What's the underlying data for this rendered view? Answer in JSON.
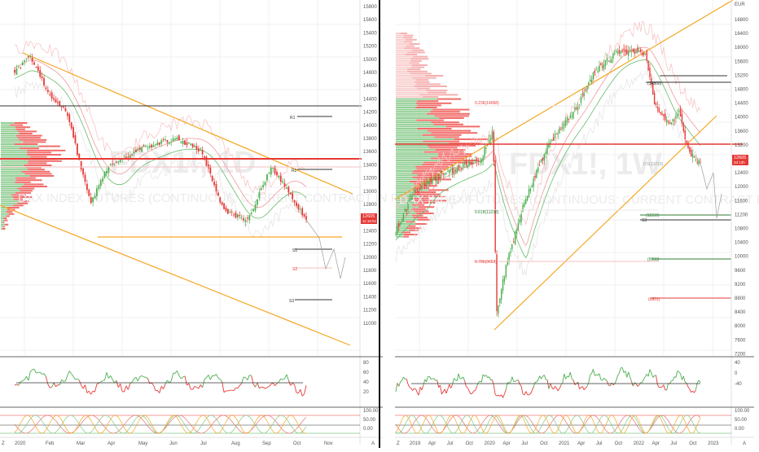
{
  "colors": {
    "up": "#4caf50",
    "down": "#e53935",
    "orange": "#f5a623",
    "black": "#333333",
    "green_lvl": "#2e7d32",
    "red_lvl": "#e53935",
    "vp_green": "#81c784",
    "vp_red": "#ef5350"
  },
  "left": {
    "watermark": "FDX1!, 1D",
    "subtitle": "DAX INDEX FUTURES (CONTINUOUS: CURRENT CONTRACT IN FRONT)",
    "price_label": "12605",
    "timer_label": "11:16:51",
    "levels": [
      "R1",
      "R2",
      "S1",
      "S2",
      "S3"
    ],
    "x_ticks": [
      "2020",
      "Feb",
      "Mar",
      "Apr",
      "May",
      "Jun",
      "Jul",
      "Aug",
      "Sep",
      "Oct",
      "Nov"
    ],
    "y_ticks": [
      "15800",
      "15600",
      "15400",
      "15200",
      "15000",
      "14800",
      "14600",
      "14400",
      "14200",
      "14000",
      "13800",
      "13600",
      "13400",
      "13200",
      "13000",
      "12800",
      "12600",
      "12400",
      "12200",
      "12000",
      "11800",
      "11600",
      "11400",
      "11200",
      "11000"
    ],
    "rsi_ticks": [
      "80",
      "60",
      "40",
      "20"
    ],
    "stoch_ticks": [
      "100.00",
      "50.00",
      "0.00"
    ],
    "scale_mode": "A",
    "corner_icon": "Z"
  },
  "right": {
    "watermark": "FDX1!, 1W",
    "subtitle": "DAX INDEX FUTURES (CONTINUOUS: CURRENT CONTRACT IN FRONT)",
    "currency": "EUR",
    "price_label": "12605",
    "timer_label": "2d 13h",
    "y_ticks": [
      "16800",
      "16400",
      "16000",
      "15600",
      "15200",
      "14800",
      "14400",
      "14000",
      "13600",
      "13200",
      "12800",
      "12400",
      "12000",
      "11600",
      "11200",
      "10800",
      "10400",
      "10000",
      "9600",
      "9200",
      "8800",
      "8400",
      "8000",
      "7600",
      "7200"
    ],
    "x_ticks": [
      "2019",
      "Apr",
      "Jul",
      "Oct",
      "2020",
      "Apr",
      "Jul",
      "Oct",
      "2021",
      "Apr",
      "Jul",
      "Oct",
      "2022",
      "Apr",
      "Jul",
      "Oct",
      "2023"
    ],
    "fib_labels": [
      "0.236(14068)",
      "0.5(13233)",
      "0.618(11238)",
      "0.786(9653)"
    ],
    "level_labels": [
      "(14800)",
      "(11150)",
      "(9903)",
      "(8801)"
    ],
    "level_S3": "S3",
    "rsi_ticks": [
      "40",
      "0",
      "-40"
    ],
    "stoch_ticks": [
      "100.00",
      "50.00",
      "0.00"
    ],
    "scale_mode": "A",
    "corner_icon": "Z"
  }
}
